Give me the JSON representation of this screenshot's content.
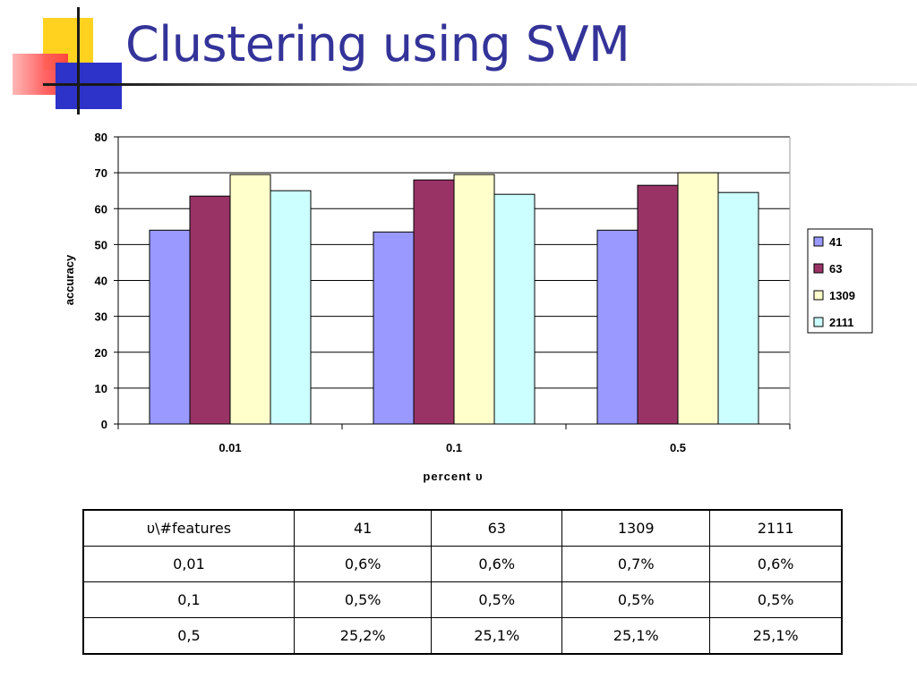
{
  "title": "Clustering using SVM",
  "chart_data": {
    "type": "bar",
    "categories": [
      "0.01",
      "0.1",
      "0.5"
    ],
    "series": [
      {
        "name": "41",
        "values": [
          54,
          53.5,
          54
        ],
        "color": "#9999ff"
      },
      {
        "name": "63",
        "values": [
          63.5,
          68,
          66.5
        ],
        "color": "#993366"
      },
      {
        "name": "1309",
        "values": [
          69.5,
          69.5,
          70
        ],
        "color": "#ffffcc"
      },
      {
        "name": "2111",
        "values": [
          65,
          64,
          64.5
        ],
        "color": "#ccffff"
      }
    ],
    "xlabel": "percent υ",
    "ylabel": "accuracy",
    "ylim": [
      0,
      80
    ],
    "yticks": [
      "0",
      "10",
      "20",
      "30",
      "40",
      "50",
      "60",
      "70",
      "80"
    ],
    "grid": true,
    "legend": "right"
  },
  "table": {
    "headers": [
      "υ\\#features",
      "41",
      "63",
      "1309",
      "2111"
    ],
    "rows": [
      [
        "0,01",
        "0,6%",
        "0,6%",
        "0,7%",
        "0,6%"
      ],
      [
        "0,1",
        "0,5%",
        "0,5%",
        "0,5%",
        "0,5%"
      ],
      [
        "0,5",
        "25,2%",
        "25,1%",
        "25,1%",
        "25,1%"
      ]
    ]
  }
}
